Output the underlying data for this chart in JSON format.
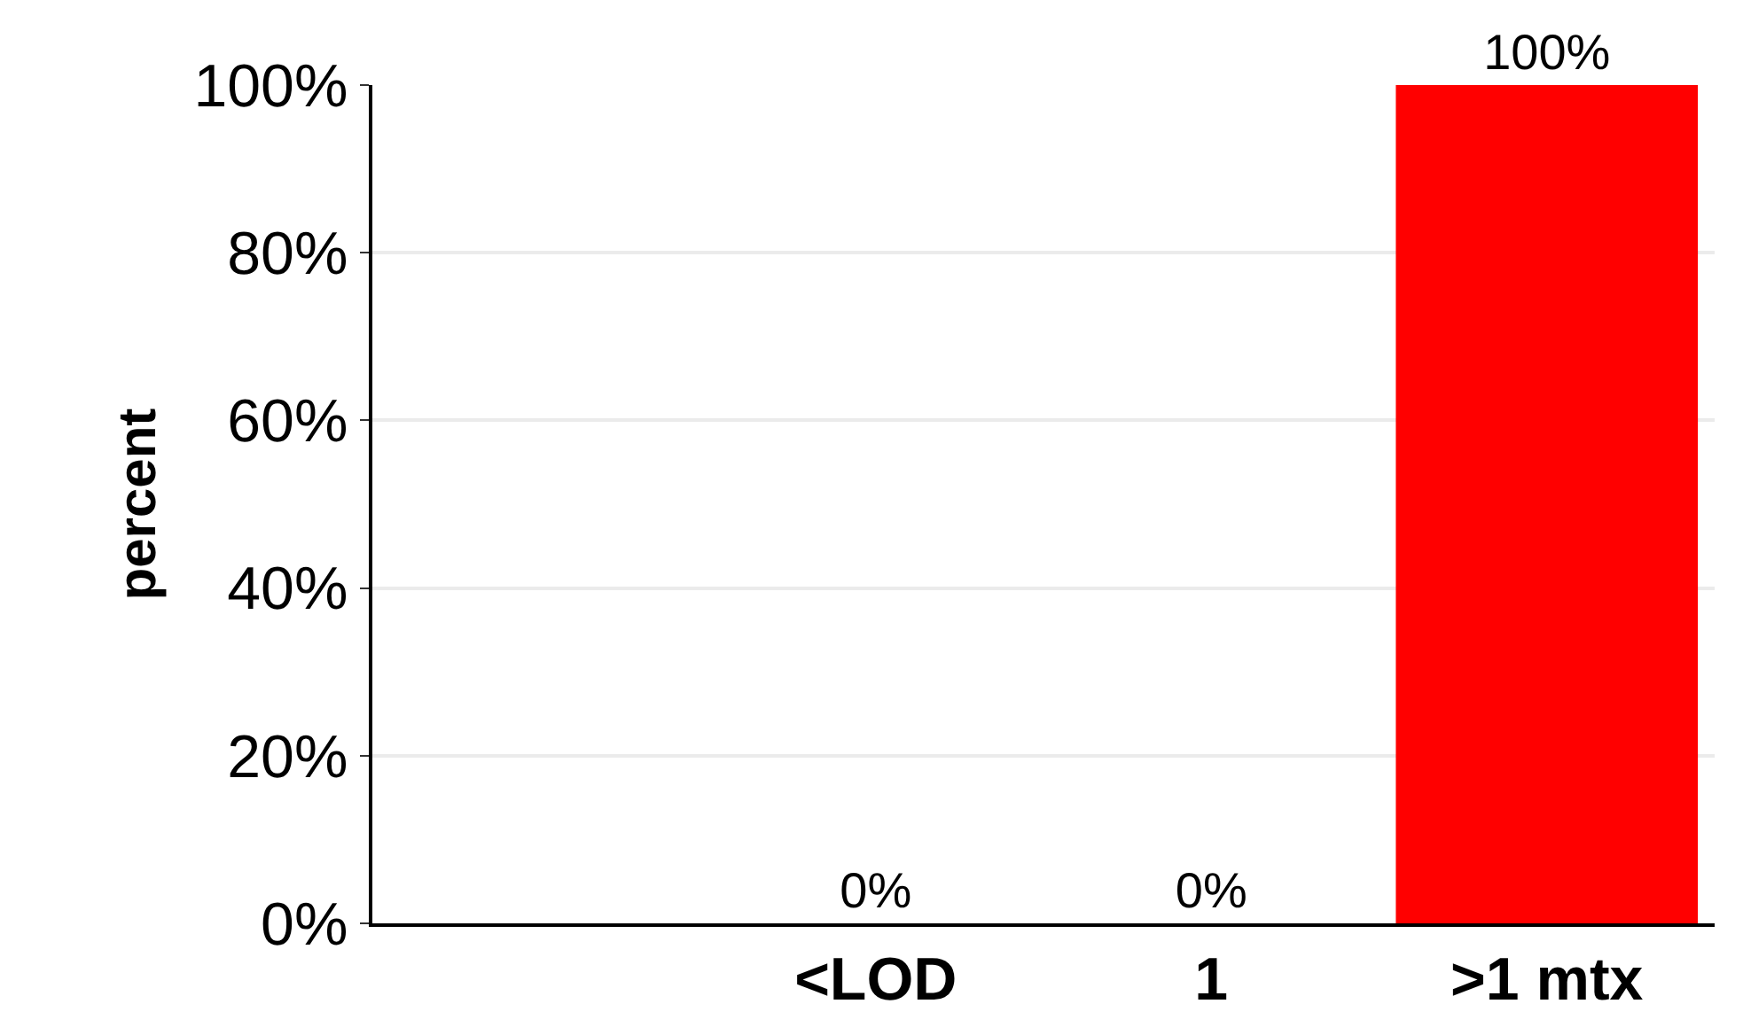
{
  "chart_data": {
    "type": "bar",
    "ylabel": "percent",
    "categories": [
      null,
      "<LOD",
      "1",
      ">1 mtx"
    ],
    "values": [
      null,
      0,
      0,
      100
    ],
    "value_labels": [
      null,
      "0%",
      "0%",
      "100%"
    ],
    "color": "#ff0000",
    "ylim": [
      0,
      100
    ],
    "yticks": [
      {
        "value": 0,
        "label": "0%"
      },
      {
        "value": 20,
        "label": "20%"
      },
      {
        "value": 40,
        "label": "40%"
      },
      {
        "value": 60,
        "label": "60%"
      },
      {
        "value": 80,
        "label": "80%"
      },
      {
        "value": 100,
        "label": "100%"
      }
    ],
    "grid": "y",
    "legend": false
  }
}
